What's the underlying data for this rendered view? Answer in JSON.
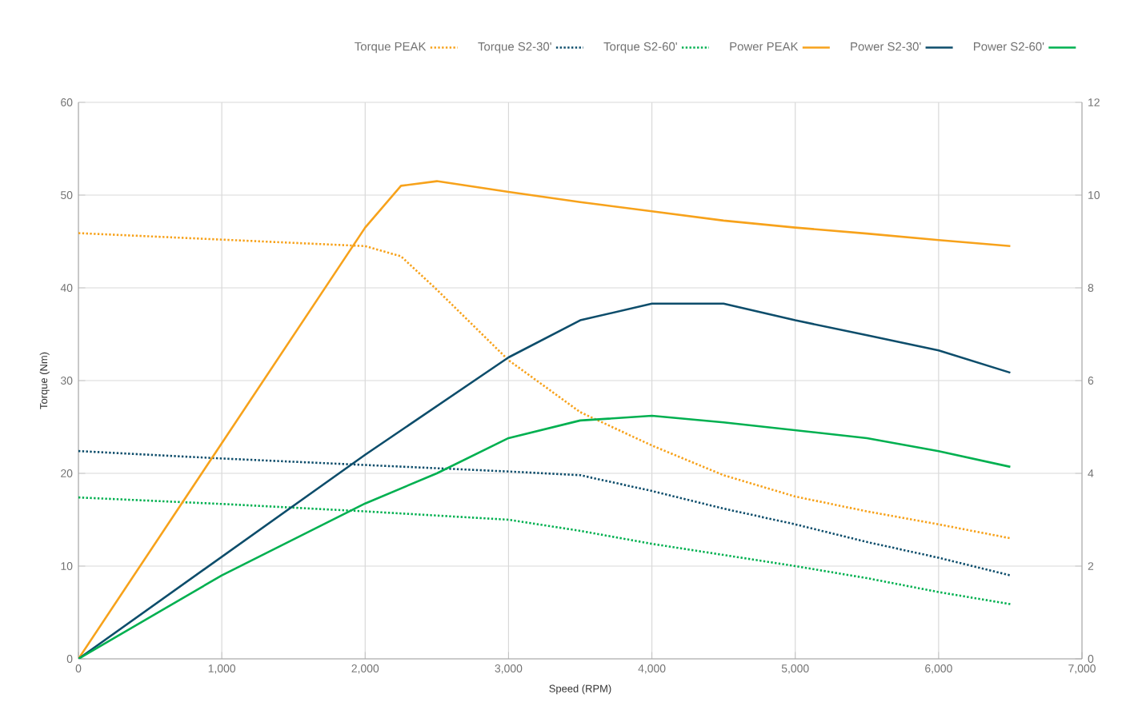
{
  "chart_data": {
    "type": "line",
    "xlabel": "Speed (RPM)",
    "ylabel": "Torque (Nm)",
    "xlim": [
      0,
      7000
    ],
    "xticks": [
      0,
      {
        "value": 1000,
        "label": "1,000"
      },
      {
        "value": 2000,
        "label": "2,000"
      },
      {
        "value": 3000,
        "label": "3,000"
      },
      {
        "value": 4000,
        "label": "4,000"
      },
      {
        "value": 5000,
        "label": "5,000"
      },
      {
        "value": 6000,
        "label": "6,000"
      },
      {
        "value": 7000,
        "label": "7,000"
      }
    ],
    "ylim": [
      0,
      60
    ],
    "yticks": [
      0,
      10,
      20,
      30,
      40,
      50,
      60
    ],
    "y2lim": [
      0,
      12
    ],
    "y2ticks": [
      0,
      2,
      4,
      6,
      8,
      10,
      12
    ],
    "grid": true,
    "legend": "top right",
    "marker": "none",
    "series": [
      {
        "name": "Torque PEAK",
        "color": "#f7a21b",
        "line_style": "dotted",
        "x": [
          0,
          2000,
          2250,
          2500,
          3000,
          3500,
          4000,
          4500,
          5000,
          5500,
          6000,
          6500
        ],
        "values": [
          45.9,
          44.5,
          43.4,
          39.8,
          32.2,
          26.6,
          23.0,
          19.8,
          17.5,
          15.9,
          14.5,
          13.0
        ]
      },
      {
        "name": "Torque S2-30'",
        "color": "#0d4d6b",
        "line_style": "dotted",
        "x": [
          0,
          1000,
          2000,
          3000,
          3500,
          4000,
          4500,
          5000,
          5500,
          6000,
          6500
        ],
        "values": [
          22.4,
          21.6,
          20.9,
          20.2,
          19.8,
          18.1,
          16.2,
          14.5,
          12.6,
          10.9,
          9.0
        ]
      },
      {
        "name": "Torque S2-60'",
        "color": "#00b050",
        "line_style": "dotted",
        "x": [
          0,
          1000,
          2000,
          3000,
          3500,
          4000,
          4500,
          5000,
          5500,
          6000,
          6500
        ],
        "values": [
          17.4,
          16.7,
          15.9,
          15.0,
          13.8,
          12.4,
          11.2,
          10.0,
          8.7,
          7.2,
          5.9
        ]
      },
      {
        "name": "Power PEAK",
        "color": "#f7a21b",
        "line_style": "solid",
        "axis": "y2",
        "x": [
          0,
          2000,
          2250,
          2500,
          3000,
          3500,
          4000,
          4500,
          5000,
          5500,
          6000,
          6500
        ],
        "values": [
          0,
          9.3,
          10.2,
          10.3,
          10.07,
          9.85,
          9.65,
          9.45,
          9.3,
          9.17,
          9.03,
          8.9
        ]
      },
      {
        "name": "Power S2-30'",
        "color": "#0d4d6b",
        "line_style": "solid",
        "axis": "y2",
        "x": [
          0,
          2000,
          3000,
          3500,
          4000,
          4500,
          5000,
          5500,
          6000,
          6500
        ],
        "values": [
          0,
          4.4,
          6.5,
          7.3,
          7.66,
          7.66,
          7.3,
          6.98,
          6.65,
          6.17
        ]
      },
      {
        "name": "Power S2-60'",
        "color": "#00b050",
        "line_style": "solid",
        "axis": "y2",
        "x": [
          0,
          1000,
          2000,
          2500,
          3000,
          3500,
          4000,
          4500,
          5000,
          5500,
          6000,
          6500
        ],
        "values": [
          0,
          1.8,
          3.35,
          4.0,
          4.76,
          5.14,
          5.24,
          5.1,
          4.93,
          4.76,
          4.48,
          4.14
        ]
      }
    ]
  }
}
